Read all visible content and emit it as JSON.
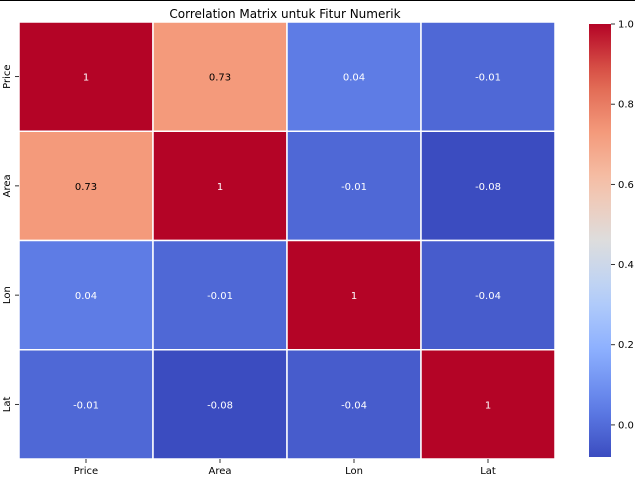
{
  "chart_data": {
    "type": "heatmap",
    "title": "Correlation Matrix untuk Fitur Numerik",
    "xlabel": "",
    "ylabel": "",
    "x_categories": [
      "Price",
      "Area",
      "Lon",
      "Lat"
    ],
    "y_categories": [
      "Price",
      "Area",
      "Lon",
      "Lat"
    ],
    "values": [
      [
        1,
        0.73,
        0.04,
        -0.01
      ],
      [
        0.73,
        1,
        -0.01,
        -0.08
      ],
      [
        0.04,
        -0.01,
        1,
        -0.04
      ],
      [
        -0.01,
        -0.08,
        -0.04,
        1
      ]
    ],
    "annotations": [
      [
        "1",
        "0.73",
        "0.04",
        "-0.01"
      ],
      [
        "0.73",
        "1",
        "-0.01",
        "-0.08"
      ],
      [
        "0.04",
        "-0.01",
        "1",
        "-0.04"
      ],
      [
        "-0.01",
        "-0.08",
        "-0.04",
        "1"
      ]
    ],
    "colormap": "coolwarm",
    "colorbar": {
      "vmin": -0.08,
      "vmax": 1.0,
      "ticks": [
        0.0,
        0.2,
        0.4,
        0.6,
        0.8,
        1.0
      ],
      "tick_labels": [
        "0.0",
        "0.2",
        "0.4",
        "0.6",
        "0.8",
        "1.0"
      ]
    },
    "grid": false,
    "cell_border_color": "#ffffff"
  }
}
